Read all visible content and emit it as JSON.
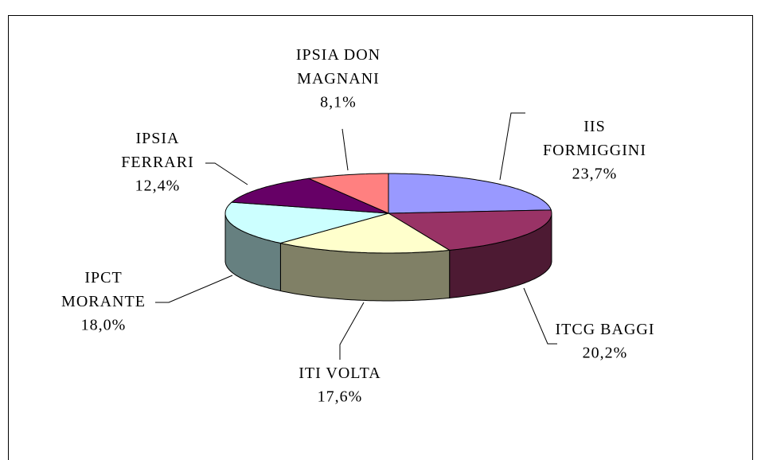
{
  "chart_data": {
    "type": "pie",
    "categories": [
      "IIS\nFORMIGGINI",
      "ITCG BAGGI",
      "ITI VOLTA",
      "IPCT\nMORANTE",
      "IPSIA\nFERRARI",
      "IPSIA DON\nMAGNANI"
    ],
    "values": [
      23.7,
      20.2,
      17.6,
      18.0,
      12.4,
      8.1
    ],
    "value_labels": [
      "23,7%",
      "20,2%",
      "17,6%",
      "18,0%",
      "12,4%",
      "8,1%"
    ],
    "colors": [
      "#9999ff",
      "#993366",
      "#ffffcc",
      "#ccffff",
      "#660066",
      "#ff8080"
    ]
  }
}
